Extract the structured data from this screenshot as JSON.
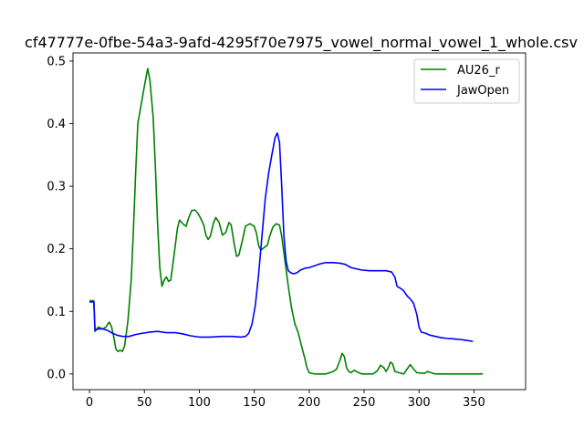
{
  "chart_data": {
    "type": "line",
    "title": "cf47777e-0fbe-54a3-9afd-4295f70e7975_vowel_normal_vowel_1_whole.csv",
    "xlim": [
      -15,
      397
    ],
    "ylim": [
      -0.025,
      0.513
    ],
    "xticks": [
      0,
      50,
      100,
      150,
      200,
      250,
      300,
      350
    ],
    "yticks": [
      0.0,
      0.1,
      0.2,
      0.3,
      0.4,
      0.5
    ],
    "grid": false,
    "legend_position": "top-right",
    "series": [
      {
        "name": "AU26_r",
        "color": "#008000",
        "points": [
          [
            0,
            0.117
          ],
          [
            4,
            0.117
          ],
          [
            5,
            0.068
          ],
          [
            8,
            0.075
          ],
          [
            12,
            0.072
          ],
          [
            15,
            0.075
          ],
          [
            18,
            0.083
          ],
          [
            20,
            0.076
          ],
          [
            22,
            0.06
          ],
          [
            24,
            0.04
          ],
          [
            26,
            0.036
          ],
          [
            28,
            0.038
          ],
          [
            30,
            0.036
          ],
          [
            32,
            0.045
          ],
          [
            35,
            0.085
          ],
          [
            38,
            0.15
          ],
          [
            40,
            0.23
          ],
          [
            42,
            0.32
          ],
          [
            44,
            0.4
          ],
          [
            47,
            0.43
          ],
          [
            50,
            0.46
          ],
          [
            53,
            0.488
          ],
          [
            55,
            0.47
          ],
          [
            58,
            0.41
          ],
          [
            60,
            0.33
          ],
          [
            62,
            0.24
          ],
          [
            64,
            0.17
          ],
          [
            66,
            0.14
          ],
          [
            68,
            0.15
          ],
          [
            70,
            0.155
          ],
          [
            72,
            0.148
          ],
          [
            74,
            0.15
          ],
          [
            77,
            0.19
          ],
          [
            80,
            0.232
          ],
          [
            82,
            0.246
          ],
          [
            85,
            0.24
          ],
          [
            88,
            0.236
          ],
          [
            90,
            0.248
          ],
          [
            93,
            0.261
          ],
          [
            96,
            0.262
          ],
          [
            99,
            0.256
          ],
          [
            102,
            0.246
          ],
          [
            104,
            0.238
          ],
          [
            106,
            0.222
          ],
          [
            108,
            0.215
          ],
          [
            110,
            0.22
          ],
          [
            113,
            0.242
          ],
          [
            115,
            0.25
          ],
          [
            118,
            0.242
          ],
          [
            121,
            0.222
          ],
          [
            124,
            0.226
          ],
          [
            127,
            0.242
          ],
          [
            129,
            0.238
          ],
          [
            132,
            0.205
          ],
          [
            134,
            0.188
          ],
          [
            136,
            0.19
          ],
          [
            139,
            0.212
          ],
          [
            142,
            0.236
          ],
          [
            146,
            0.24
          ],
          [
            150,
            0.236
          ],
          [
            152,
            0.225
          ],
          [
            154,
            0.205
          ],
          [
            156,
            0.198
          ],
          [
            159,
            0.202
          ],
          [
            162,
            0.206
          ],
          [
            164,
            0.22
          ],
          [
            167,
            0.235
          ],
          [
            170,
            0.24
          ],
          [
            173,
            0.238
          ],
          [
            175,
            0.22
          ],
          [
            178,
            0.18
          ],
          [
            181,
            0.14
          ],
          [
            184,
            0.105
          ],
          [
            187,
            0.08
          ],
          [
            190,
            0.066
          ],
          [
            193,
            0.045
          ],
          [
            196,
            0.025
          ],
          [
            198,
            0.01
          ],
          [
            200,
            0.002
          ],
          [
            205,
            0.0
          ],
          [
            215,
            0.0
          ],
          [
            222,
            0.004
          ],
          [
            225,
            0.008
          ],
          [
            228,
            0.022
          ],
          [
            230,
            0.033
          ],
          [
            232,
            0.028
          ],
          [
            234,
            0.01
          ],
          [
            236,
            0.004
          ],
          [
            238,
            0.002
          ],
          [
            241,
            0.006
          ],
          [
            244,
            0.003
          ],
          [
            248,
            0.0
          ],
          [
            258,
            0.0
          ],
          [
            262,
            0.005
          ],
          [
            265,
            0.014
          ],
          [
            268,
            0.01
          ],
          [
            270,
            0.004
          ],
          [
            272,
            0.01
          ],
          [
            274,
            0.019
          ],
          [
            276,
            0.016
          ],
          [
            278,
            0.004
          ],
          [
            282,
            0.002
          ],
          [
            286,
            0.0
          ],
          [
            290,
            0.01
          ],
          [
            292,
            0.015
          ],
          [
            295,
            0.008
          ],
          [
            298,
            0.002
          ],
          [
            305,
            0.001
          ],
          [
            308,
            0.004
          ],
          [
            311,
            0.002
          ],
          [
            315,
            0.0
          ],
          [
            358,
            0.0
          ]
        ]
      },
      {
        "name": "JawOpen",
        "color": "#0000ff",
        "points": [
          [
            0,
            0.115
          ],
          [
            4,
            0.115
          ],
          [
            5,
            0.07
          ],
          [
            8,
            0.072
          ],
          [
            12,
            0.072
          ],
          [
            16,
            0.07
          ],
          [
            20,
            0.066
          ],
          [
            25,
            0.062
          ],
          [
            30,
            0.06
          ],
          [
            36,
            0.06
          ],
          [
            42,
            0.063
          ],
          [
            48,
            0.065
          ],
          [
            55,
            0.067
          ],
          [
            62,
            0.068
          ],
          [
            70,
            0.066
          ],
          [
            78,
            0.066
          ],
          [
            85,
            0.064
          ],
          [
            92,
            0.061
          ],
          [
            100,
            0.059
          ],
          [
            110,
            0.059
          ],
          [
            120,
            0.06
          ],
          [
            130,
            0.06
          ],
          [
            138,
            0.059
          ],
          [
            142,
            0.06
          ],
          [
            145,
            0.065
          ],
          [
            148,
            0.08
          ],
          [
            151,
            0.11
          ],
          [
            154,
            0.16
          ],
          [
            157,
            0.22
          ],
          [
            160,
            0.28
          ],
          [
            163,
            0.32
          ],
          [
            166,
            0.35
          ],
          [
            169,
            0.378
          ],
          [
            171,
            0.385
          ],
          [
            173,
            0.37
          ],
          [
            175,
            0.3
          ],
          [
            177,
            0.22
          ],
          [
            179,
            0.18
          ],
          [
            181,
            0.165
          ],
          [
            183,
            0.162
          ],
          [
            186,
            0.16
          ],
          [
            189,
            0.162
          ],
          [
            192,
            0.166
          ],
          [
            196,
            0.169
          ],
          [
            200,
            0.17
          ],
          [
            205,
            0.173
          ],
          [
            210,
            0.176
          ],
          [
            215,
            0.178
          ],
          [
            222,
            0.178
          ],
          [
            228,
            0.177
          ],
          [
            233,
            0.175
          ],
          [
            238,
            0.17
          ],
          [
            243,
            0.168
          ],
          [
            248,
            0.166
          ],
          [
            255,
            0.165
          ],
          [
            262,
            0.165
          ],
          [
            270,
            0.165
          ],
          [
            275,
            0.163
          ],
          [
            278,
            0.155
          ],
          [
            280,
            0.14
          ],
          [
            283,
            0.137
          ],
          [
            286,
            0.133
          ],
          [
            289,
            0.125
          ],
          [
            292,
            0.12
          ],
          [
            295,
            0.113
          ],
          [
            298,
            0.095
          ],
          [
            300,
            0.075
          ],
          [
            302,
            0.067
          ],
          [
            306,
            0.065
          ],
          [
            310,
            0.062
          ],
          [
            315,
            0.06
          ],
          [
            320,
            0.058
          ],
          [
            325,
            0.057
          ],
          [
            332,
            0.056
          ],
          [
            338,
            0.055
          ],
          [
            342,
            0.054
          ],
          [
            346,
            0.053
          ],
          [
            349,
            0.052
          ]
        ]
      }
    ]
  }
}
